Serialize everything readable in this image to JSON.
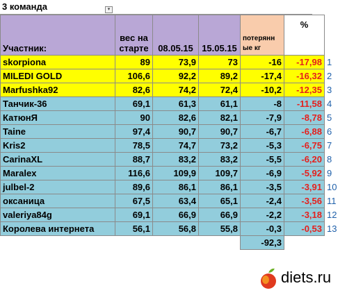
{
  "sheet": {
    "title": "3 команда",
    "filter_glyph": "▾",
    "headers": {
      "name": "Участник:",
      "start": [
        "вес на",
        "старте"
      ],
      "d1": "08.05.15",
      "d2": "15.05.15",
      "loss": [
        "потерянн",
        "ые кг"
      ],
      "pct": "%"
    },
    "rows": [
      {
        "name": "skorpiona",
        "start": "89",
        "d1": "73,9",
        "d2": "73",
        "loss": "-16",
        "pct": "-17,98",
        "rank": "1"
      },
      {
        "name": "MILEDI GOLD",
        "start": "106,6",
        "d1": "92,2",
        "d2": "89,2",
        "loss": "-17,4",
        "pct": "-16,32",
        "rank": "2"
      },
      {
        "name": "Marfushka92",
        "start": "82,6",
        "d1": "74,2",
        "d2": "72,4",
        "loss": "-10,2",
        "pct": "-12,35",
        "rank": "3"
      },
      {
        "name": "Танчик-36",
        "start": "69,1",
        "d1": "61,3",
        "d2": "61,1",
        "loss": "-8",
        "pct": "-11,58",
        "rank": "4"
      },
      {
        "name": "КатюнЯ",
        "start": "90",
        "d1": "82,6",
        "d2": "82,1",
        "loss": "-7,9",
        "pct": "-8,78",
        "rank": "5"
      },
      {
        "name": "Taine",
        "start": "97,4",
        "d1": "90,7",
        "d2": "90,7",
        "loss": "-6,7",
        "pct": "-6,88",
        "rank": "6"
      },
      {
        "name": "Kris2",
        "start": "78,5",
        "d1": "74,7",
        "d2": "73,2",
        "loss": "-5,3",
        "pct": "-6,75",
        "rank": "7"
      },
      {
        "name": "CarinaXL",
        "start": "88,7",
        "d1": "83,2",
        "d2": "83,2",
        "loss": "-5,5",
        "pct": "-6,20",
        "rank": "8"
      },
      {
        "name": "Maralex",
        "start": "116,6",
        "d1": "109,9",
        "d2": "109,7",
        "loss": "-6,9",
        "pct": "-5,92",
        "rank": "9"
      },
      {
        "name": "julbel-2",
        "start": "89,6",
        "d1": "86,1",
        "d2": "86,1",
        "loss": "-3,5",
        "pct": "-3,91",
        "rank": "10"
      },
      {
        "name": "оксаница",
        "start": "67,5",
        "d1": "63,4",
        "d2": "65,1",
        "loss": "-2,4",
        "pct": "-3,56",
        "rank": "11"
      },
      {
        "name": "valeriya84g",
        "start": "69,1",
        "d1": "66,9",
        "d2": "66,9",
        "loss": "-2,2",
        "pct": "-3,18",
        "rank": "12"
      },
      {
        "name": "Королева интернета",
        "start": "56,1",
        "d1": "56,8",
        "d2": "55,8",
        "loss": "-0,3",
        "pct": "-0,53",
        "rank": "13"
      }
    ],
    "total_loss": "-92,3"
  },
  "watermark": {
    "text": "diets.ru"
  },
  "colors": {
    "header": "#b9a7d6",
    "loss_header": "#f9ccac",
    "top3": "#ffff00",
    "rest": "#92cddc",
    "pct_text": "#e5201d",
    "rank_text": "#1f60aa"
  }
}
